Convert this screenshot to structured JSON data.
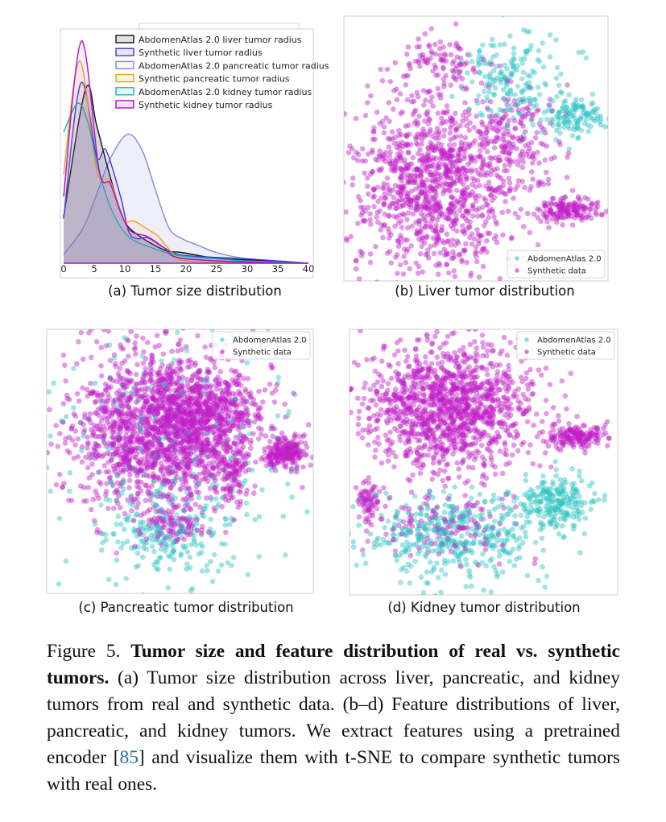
{
  "figure": {
    "panels": [
      {
        "id": "a",
        "caption": "(a) Tumor size distribution"
      },
      {
        "id": "b",
        "caption": "(b) Liver tumor distribution"
      },
      {
        "id": "c",
        "caption": "(c) Pancreatic tumor distribution"
      },
      {
        "id": "d",
        "caption": "(d) Kidney tumor distribution"
      }
    ],
    "caption": {
      "label": "Figure 5.",
      "title": "Tumor size and feature distribution of real vs. synthetic tumors.",
      "body_before_cite": "(a) Tumor size distribution across liver, pancreatic, and kidney tumors from real and synthetic data. (b–d) Feature distributions of liver, pancreatic, and kidney tumors. We extract features using a pretrained encoder [",
      "cite": "85",
      "body_after_cite": "] and visualize them with t-SNE to compare synthetic tumors with real ones."
    }
  },
  "chart_data": [
    {
      "type": "line",
      "panel": "a",
      "xlim": [
        0,
        40
      ],
      "xticks": [
        "0",
        "5",
        "10",
        "15",
        "20",
        "25",
        "30",
        "35",
        "40"
      ],
      "y_note": "relative density, no y-axis printed",
      "legend_position": "top",
      "series": [
        {
          "name": "AbdomenAtlas 2.0 liver tumor radius",
          "color": "#111111",
          "fill": "#8c8699",
          "x": [
            0,
            3.6,
            5.4,
            7.6,
            9.8,
            12,
            16.4,
            19.4,
            25,
            30,
            35,
            40
          ],
          "y": [
            0.21,
            0.785,
            0.62,
            0.39,
            0.2,
            0.13,
            0.06,
            0.048,
            0.022,
            0.015,
            0.01,
            0
          ]
        },
        {
          "name": "Synthetic liver tumor radius",
          "color": "#3a3ad6",
          "fill": "#3a3ad6",
          "x": [
            0,
            2.8,
            5.4,
            6.9,
            9.3,
            10.6,
            12,
            13.7,
            16.4,
            19.4,
            30,
            35,
            40
          ],
          "y": [
            0.2,
            0.81,
            0.48,
            0.51,
            0.3,
            0.145,
            0.11,
            0.115,
            0.07,
            0.036,
            0.02,
            0.01,
            0
          ]
        },
        {
          "name": "AbdomenAtlas 2.0 pancreatic tumor radius",
          "color": "#8a86e0",
          "fill": "#c9c6f2",
          "x": [
            0,
            3.2,
            5.8,
            7.6,
            10.4,
            12.8,
            15,
            17.2,
            19.4,
            21.6,
            25,
            29.5,
            35,
            40
          ],
          "y": [
            0.04,
            0.16,
            0.34,
            0.47,
            0.58,
            0.51,
            0.33,
            0.16,
            0.11,
            0.085,
            0.048,
            0.022,
            0.008,
            0
          ]
        },
        {
          "name": "Synthetic pancreatic tumor radius",
          "color": "#f0a020",
          "fill": "#f0a020",
          "x": [
            0,
            2.6,
            5.4,
            7.6,
            9.8,
            11.5,
            14.2,
            15.5,
            17.7,
            19.9,
            30,
            40
          ],
          "y": [
            0.4,
            0.91,
            0.42,
            0.37,
            0.2,
            0.19,
            0.145,
            0.12,
            0.05,
            0.012,
            0.003,
            0
          ]
        },
        {
          "name": "AbdomenAtlas 2.0 kidney tumor radius",
          "color": "#20b0b8",
          "fill": "#20b0b8",
          "x": [
            0,
            2.3,
            4,
            5.8,
            8,
            10.6,
            14.2,
            18.5,
            25,
            30,
            40
          ],
          "y": [
            0.59,
            0.72,
            0.63,
            0.41,
            0.23,
            0.12,
            0.072,
            0.036,
            0.02,
            0.01,
            0
          ]
        },
        {
          "name": "Synthetic kidney tumor radius",
          "color": "#b010c0",
          "fill": "#b010c0",
          "x": [
            0,
            2.9,
            5.8,
            7.6,
            9.3,
            11,
            13.7,
            16.4,
            19,
            30,
            40
          ],
          "y": [
            0.3,
            1.0,
            0.42,
            0.36,
            0.23,
            0.145,
            0.12,
            0.07,
            0.024,
            0.005,
            0
          ]
        }
      ]
    },
    {
      "type": "scatter",
      "panel": "b",
      "method": "t-SNE",
      "legend_position": "bottom-right",
      "series": [
        {
          "name": "AbdomenAtlas 2.0",
          "color": "#2ec4c4"
        },
        {
          "name": "Synthetic data",
          "color": "#c020c8"
        }
      ]
    },
    {
      "type": "scatter",
      "panel": "c",
      "method": "t-SNE",
      "legend_position": "top-right",
      "series": [
        {
          "name": "AbdomenAtlas 2.0",
          "color": "#2ec4c4"
        },
        {
          "name": "Synthetic data",
          "color": "#c020c8"
        }
      ]
    },
    {
      "type": "scatter",
      "panel": "d",
      "method": "t-SNE",
      "legend_position": "top-right",
      "series": [
        {
          "name": "AbdomenAtlas 2.0",
          "color": "#2ec4c4"
        },
        {
          "name": "Synthetic data",
          "color": "#c020c8"
        }
      ]
    }
  ]
}
